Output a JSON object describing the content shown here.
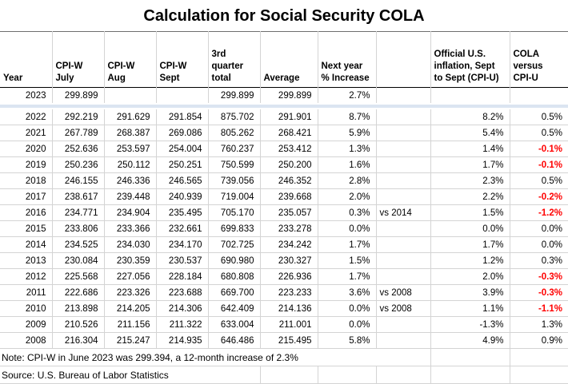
{
  "colors": {
    "negative_value": "#ff0000",
    "separator_band": "#dbe5f1",
    "gridline": "#d4d4d4",
    "header_border": "#000000"
  },
  "chart_data": {
    "type": "table",
    "title": "Calculation for Social Security COLA",
    "columns": [
      {
        "key": "year",
        "label": "Year"
      },
      {
        "key": "july",
        "label": "CPI-W\nJuly"
      },
      {
        "key": "aug",
        "label": "CPI-W\nAug"
      },
      {
        "key": "sept",
        "label": "CPI-W\nSept"
      },
      {
        "key": "total",
        "label": "3rd\nquarter\ntotal"
      },
      {
        "key": "average",
        "label": "Average"
      },
      {
        "key": "increase",
        "label": "Next year\n% Increase"
      },
      {
        "key": "note",
        "label": ""
      },
      {
        "key": "cpiu",
        "label": "Official U.S.\ninflation, Sept\nto Sept (CPI-U)"
      },
      {
        "key": "cola",
        "label": "COLA\nversus\nCPI-U"
      }
    ],
    "rows": [
      [
        "2023",
        "299.899",
        "",
        "",
        "299.899",
        "299.899",
        "2.7%",
        "",
        "",
        ""
      ],
      [
        "2022",
        "292.219",
        "291.629",
        "291.854",
        "875.702",
        "291.901",
        "8.7%",
        "",
        "8.2%",
        "0.5%"
      ],
      [
        "2021",
        "267.789",
        "268.387",
        "269.086",
        "805.262",
        "268.421",
        "5.9%",
        "",
        "5.4%",
        "0.5%"
      ],
      [
        "2020",
        "252.636",
        "253.597",
        "254.004",
        "760.237",
        "253.412",
        "1.3%",
        "",
        "1.4%",
        "-0.1%"
      ],
      [
        "2019",
        "250.236",
        "250.112",
        "250.251",
        "750.599",
        "250.200",
        "1.6%",
        "",
        "1.7%",
        "-0.1%"
      ],
      [
        "2018",
        "246.155",
        "246.336",
        "246.565",
        "739.056",
        "246.352",
        "2.8%",
        "",
        "2.3%",
        "0.5%"
      ],
      [
        "2017",
        "238.617",
        "239.448",
        "240.939",
        "719.004",
        "239.668",
        "2.0%",
        "",
        "2.2%",
        "-0.2%"
      ],
      [
        "2016",
        "234.771",
        "234.904",
        "235.495",
        "705.170",
        "235.057",
        "0.3%",
        "vs 2014",
        "1.5%",
        "-1.2%"
      ],
      [
        "2015",
        "233.806",
        "233.366",
        "232.661",
        "699.833",
        "233.278",
        "0.0%",
        "",
        "0.0%",
        "0.0%"
      ],
      [
        "2014",
        "234.525",
        "234.030",
        "234.170",
        "702.725",
        "234.242",
        "1.7%",
        "",
        "1.7%",
        "0.0%"
      ],
      [
        "2013",
        "230.084",
        "230.359",
        "230.537",
        "690.980",
        "230.327",
        "1.5%",
        "",
        "1.2%",
        "0.3%"
      ],
      [
        "2012",
        "225.568",
        "227.056",
        "228.184",
        "680.808",
        "226.936",
        "1.7%",
        "",
        "2.0%",
        "-0.3%"
      ],
      [
        "2011",
        "222.686",
        "223.326",
        "223.688",
        "669.700",
        "223.233",
        "3.6%",
        "vs 2008",
        "3.9%",
        "-0.3%"
      ],
      [
        "2010",
        "213.898",
        "214.205",
        "214.306",
        "642.409",
        "214.136",
        "0.0%",
        "vs 2008",
        "1.1%",
        "-1.1%"
      ],
      [
        "2009",
        "210.526",
        "211.156",
        "211.322",
        "633.004",
        "211.001",
        "0.0%",
        "",
        "-1.3%",
        "1.3%"
      ],
      [
        "2008",
        "216.304",
        "215.247",
        "214.935",
        "646.486",
        "215.495",
        "5.8%",
        "",
        "4.9%",
        "0.9%"
      ]
    ],
    "footer": {
      "note": "Note: CPI-W in June 2023 was 299.394, a 12-month increase of 2.3%",
      "source": "Source: U.S. Bureau of Labor Statistics"
    }
  }
}
